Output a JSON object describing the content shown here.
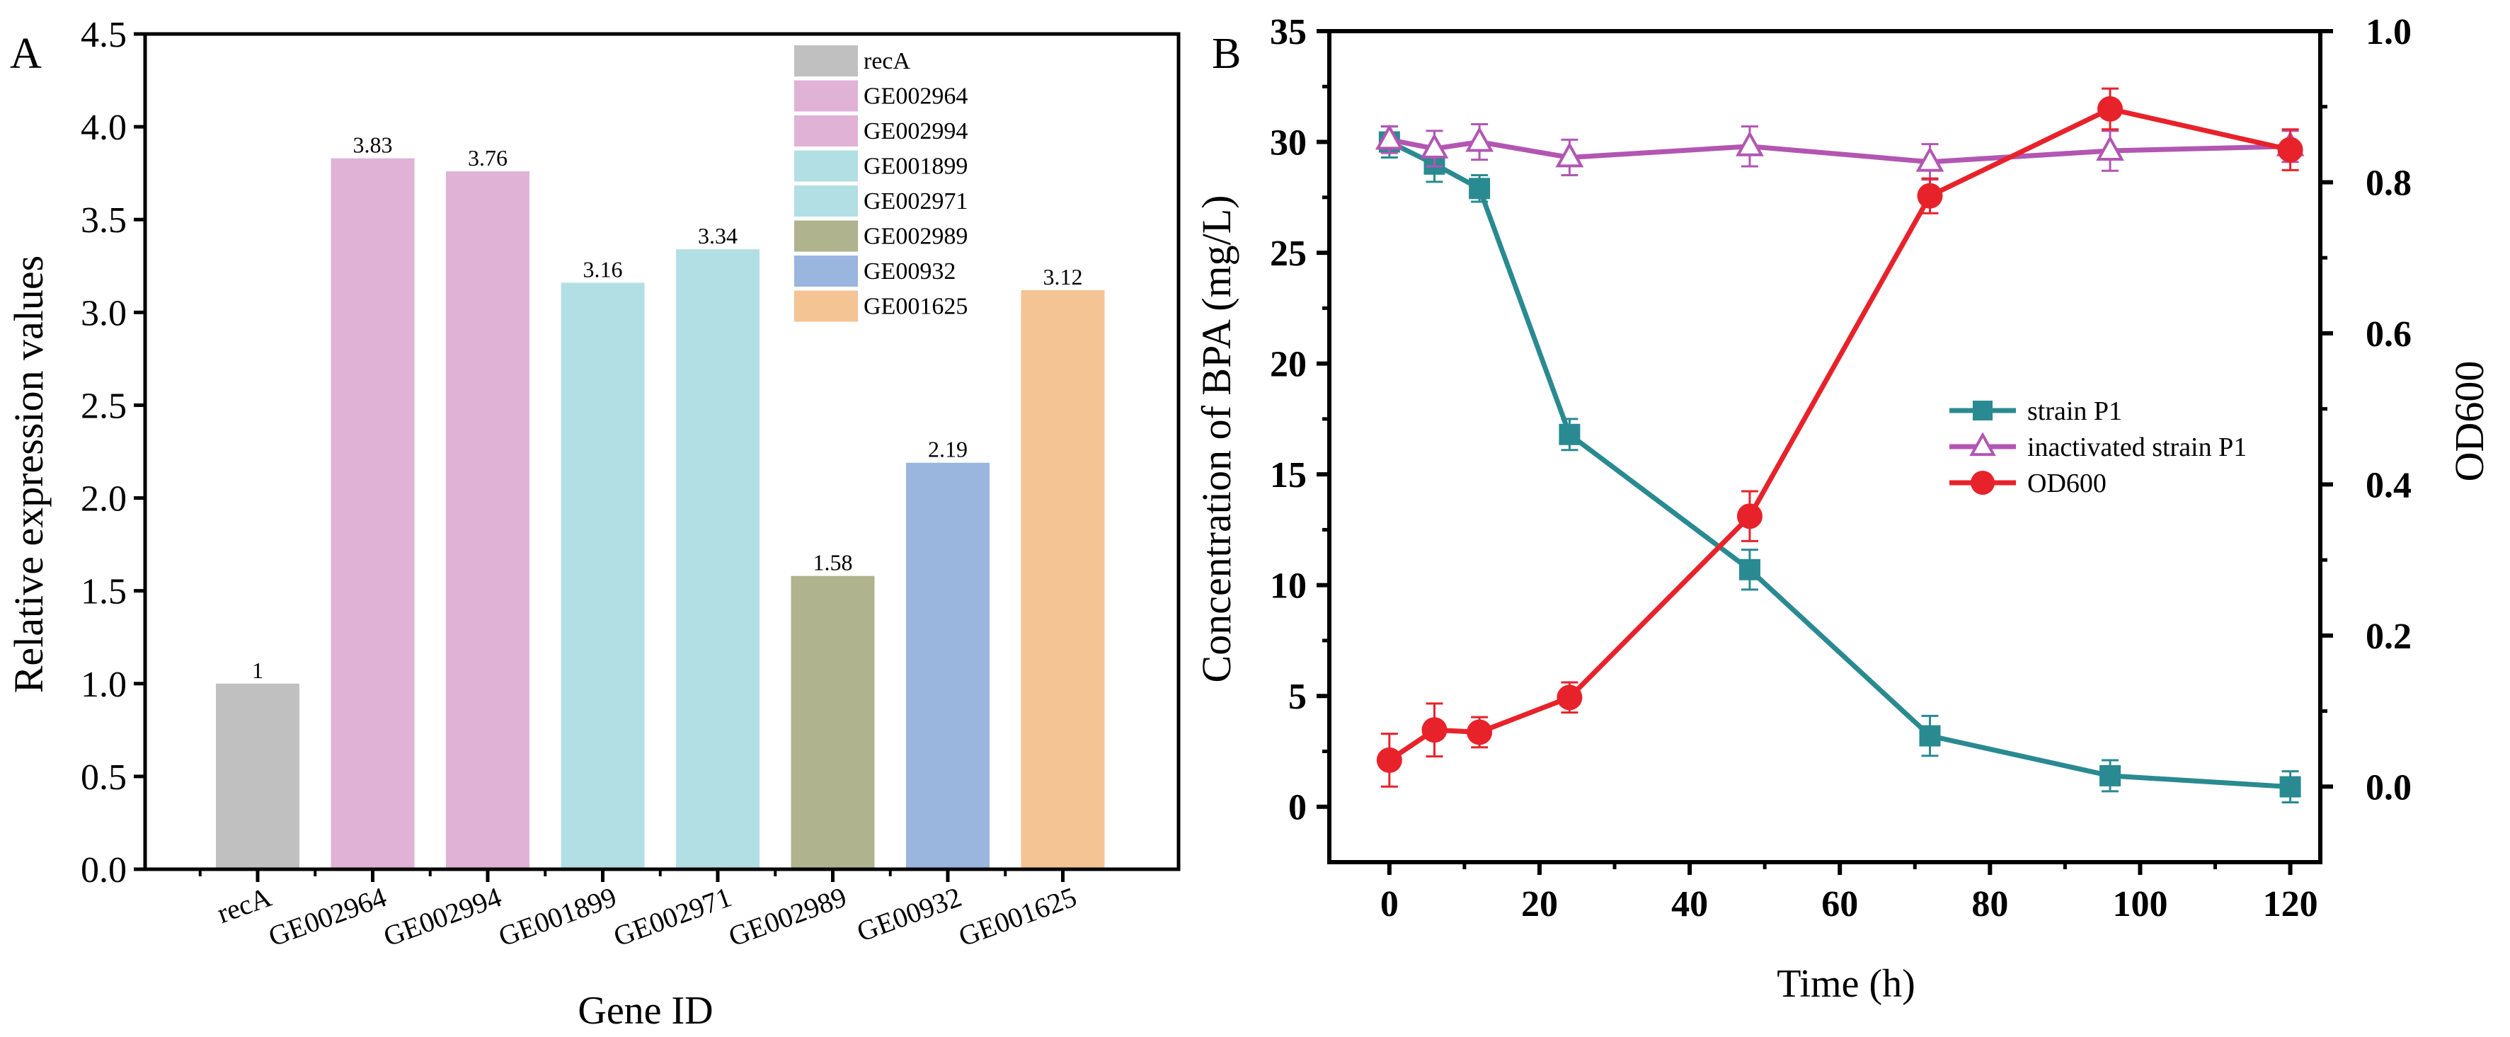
{
  "chart_data": [
    {
      "panel": "A",
      "type": "bar",
      "title": "",
      "xlabel": "Gene ID",
      "ylabel": "Relative expression values",
      "ylim": [
        0,
        4.5
      ],
      "yticks": [
        "0.0",
        "0.5",
        "1.0",
        "1.5",
        "2.0",
        "2.5",
        "3.0",
        "3.5",
        "4.0",
        "4.5"
      ],
      "categories": [
        "recA",
        "GE002964",
        "GE002994",
        "GE001899",
        "GE002971",
        "GE002989",
        "GE00932",
        "GE001625"
      ],
      "values": [
        1,
        3.83,
        3.76,
        3.16,
        3.34,
        1.58,
        2.19,
        3.12
      ],
      "value_labels": [
        "1",
        "3.83",
        "3.76",
        "3.16",
        "3.34",
        "1.58",
        "2.19",
        "3.12"
      ],
      "colors": [
        "#c0c0c0",
        "#e0b2d6",
        "#e0b2d6",
        "#b2dfe4",
        "#b2dfe4",
        "#afb38e",
        "#9ab5de",
        "#f4c495"
      ],
      "legend": {
        "placement": "top-right",
        "entries": [
          {
            "label": "recA",
            "color": "#c0c0c0"
          },
          {
            "label": "GE002964",
            "color": "#e0b2d6"
          },
          {
            "label": "GE002994",
            "color": "#e0b2d6"
          },
          {
            "label": "GE001899",
            "color": "#b2dfe4"
          },
          {
            "label": "GE002971",
            "color": "#b2dfe4"
          },
          {
            "label": "GE002989",
            "color": "#afb38e"
          },
          {
            "label": "GE00932",
            "color": "#9ab5de"
          },
          {
            "label": "GE001625",
            "color": "#f4c495"
          }
        ]
      }
    },
    {
      "panel": "B",
      "type": "line",
      "title": "",
      "xlabel": "Time (h)",
      "ylabel": "Concentration of BPA (mg/L)",
      "y2label": "OD600",
      "xlim": [
        -8,
        124
      ],
      "ylim": [
        -2.5,
        35
      ],
      "y2lim": [
        -0.1,
        1.0
      ],
      "xticks": [
        "0",
        "20",
        "40",
        "60",
        "80",
        "100",
        "120"
      ],
      "yticks": [
        "0",
        "5",
        "10",
        "15",
        "20",
        "25",
        "30",
        "35"
      ],
      "y2ticks": [
        "0.0",
        "0.2",
        "0.4",
        "0.6",
        "0.8",
        "1.0"
      ],
      "x": [
        0,
        6,
        12,
        24,
        48,
        72,
        96,
        120
      ],
      "series": [
        {
          "name": "strain P1",
          "axis": "left",
          "marker": "square",
          "color": "#2a8a91",
          "values": [
            30.0,
            29.0,
            27.9,
            16.8,
            10.7,
            3.2,
            1.4,
            0.9
          ],
          "errors": [
            0.7,
            0.8,
            0.6,
            0.7,
            0.9,
            0.9,
            0.7,
            0.7
          ]
        },
        {
          "name": "inactivated strain P1",
          "axis": "left",
          "marker": "triangle",
          "color": "#b256b2",
          "values": [
            30.1,
            29.7,
            30.0,
            29.3,
            29.8,
            29.1,
            29.6,
            29.8
          ],
          "errors": [
            0.6,
            0.8,
            0.8,
            0.8,
            0.9,
            0.8,
            0.9,
            0.7
          ]
        },
        {
          "name": "OD600",
          "axis": "right",
          "marker": "circle",
          "color": "#e8222a",
          "values": [
            0.035,
            0.075,
            0.072,
            0.118,
            0.358,
            0.782,
            0.897,
            0.843
          ],
          "errors": [
            0.035,
            0.035,
            0.02,
            0.02,
            0.033,
            0.023,
            0.027,
            0.027
          ]
        }
      ],
      "legend": {
        "placement": "center-right"
      }
    }
  ],
  "panel_labels": {
    "a": "A",
    "b": "B"
  }
}
